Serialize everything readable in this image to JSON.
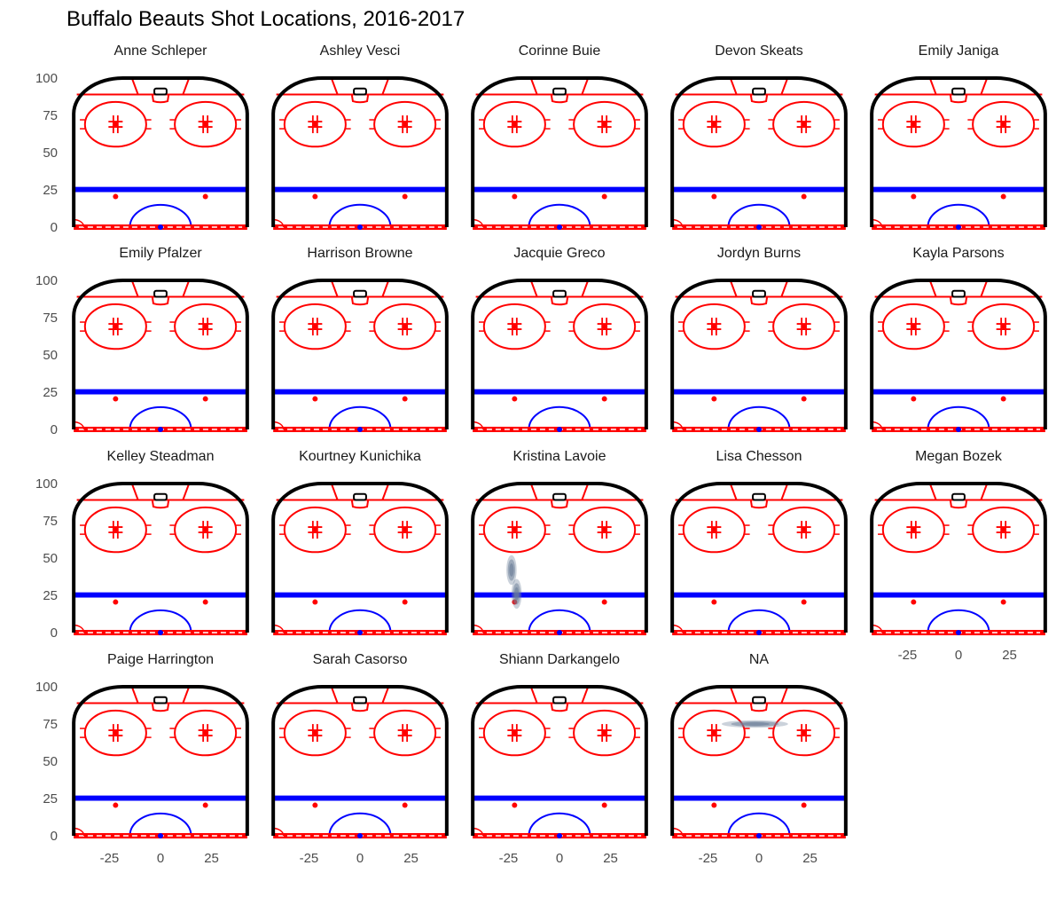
{
  "chart_data": {
    "type": "faceted-density",
    "title": "Buffalo Beauts Shot Locations, 2016-2017",
    "xlabel": "",
    "ylabel": "",
    "xlim": [
      -43,
      43
    ],
    "ylim": [
      0,
      100
    ],
    "x_ticks": [
      -25,
      0,
      25
    ],
    "y_ticks": [
      0,
      25,
      50,
      75,
      100
    ],
    "grid": false,
    "colors": {
      "boards": "#000000",
      "red_lines": "#ff0000",
      "blue_line": "#0000ff",
      "shot_density": "#6b7d97"
    },
    "facets": [
      {
        "name": "Anne Schleper",
        "shots": []
      },
      {
        "name": "Ashley Vesci",
        "shots": []
      },
      {
        "name": "Corinne Buie",
        "shots": []
      },
      {
        "name": "Devon Skeats",
        "shots": []
      },
      {
        "name": "Emily Janiga",
        "shots": []
      },
      {
        "name": "Emily Pfalzer",
        "shots": []
      },
      {
        "name": "Harrison Browne",
        "shots": []
      },
      {
        "name": "Jacquie Greco",
        "shots": []
      },
      {
        "name": "Jordyn Burns",
        "shots": []
      },
      {
        "name": "Kayla Parsons",
        "shots": []
      },
      {
        "name": "Kelley Steadman",
        "shots": []
      },
      {
        "name": "Kourtney Kunichika",
        "shots": []
      },
      {
        "name": "Kristina Lavoie",
        "shots": [
          {
            "x": -23.5,
            "y": 42,
            "sx": 2,
            "sy": 8
          },
          {
            "x": -21,
            "y": 26,
            "sx": 2,
            "sy": 8
          }
        ]
      },
      {
        "name": "Lisa Chesson",
        "shots": []
      },
      {
        "name": "Megan Bozek",
        "shots": []
      },
      {
        "name": "Paige Harrington",
        "shots": []
      },
      {
        "name": "Sarah Casorso",
        "shots": []
      },
      {
        "name": "Shiann Darkangelo",
        "shots": []
      },
      {
        "name": "NA",
        "shots": [
          {
            "x": -2,
            "y": 75,
            "sx": 13,
            "sy": 2
          }
        ]
      }
    ]
  }
}
